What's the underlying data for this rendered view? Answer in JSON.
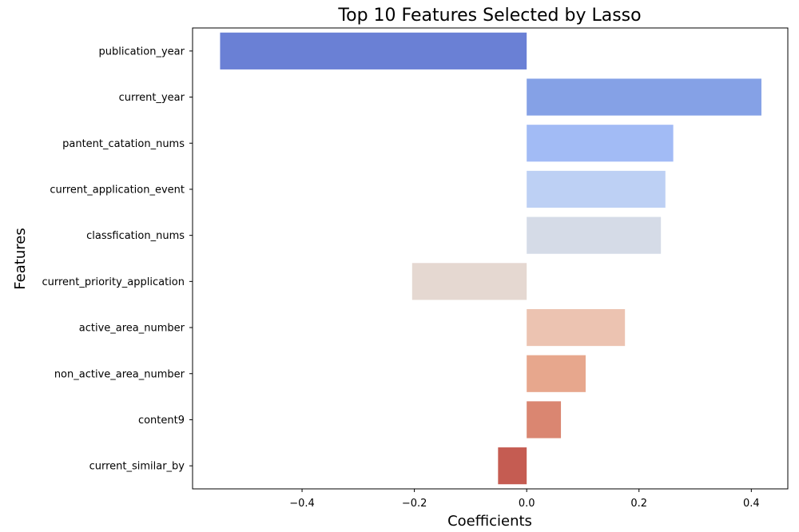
{
  "chart_data": {
    "type": "bar",
    "orientation": "horizontal",
    "title": "Top 10 Features Selected by Lasso",
    "xlabel": "Coefficients",
    "ylabel": "Features",
    "xlim": [
      -0.595,
      0.465
    ],
    "xticks": [
      -0.4,
      -0.2,
      0.0,
      0.2,
      0.4
    ],
    "xtick_labels": [
      "−0.4",
      "−0.2",
      "0.0",
      "0.2",
      "0.4"
    ],
    "grid": false,
    "categories": [
      "publication_year",
      "current_year",
      "pantent_catation_nums",
      "current_application_event",
      "classfication_nums",
      "current_priority_application",
      "active_area_number",
      "non_active_area_number",
      "content9",
      "current_similar_by"
    ],
    "values": [
      -0.546,
      0.418,
      0.261,
      0.247,
      0.239,
      -0.204,
      0.175,
      0.105,
      0.061,
      -0.051
    ],
    "colors": [
      "#6a80d5",
      "#85a1e6",
      "#a2bbf5",
      "#bdd0f4",
      "#d5dbe7",
      "#e5d8d1",
      "#ecc3b1",
      "#e7a78d",
      "#da8671",
      "#c55c52"
    ]
  }
}
